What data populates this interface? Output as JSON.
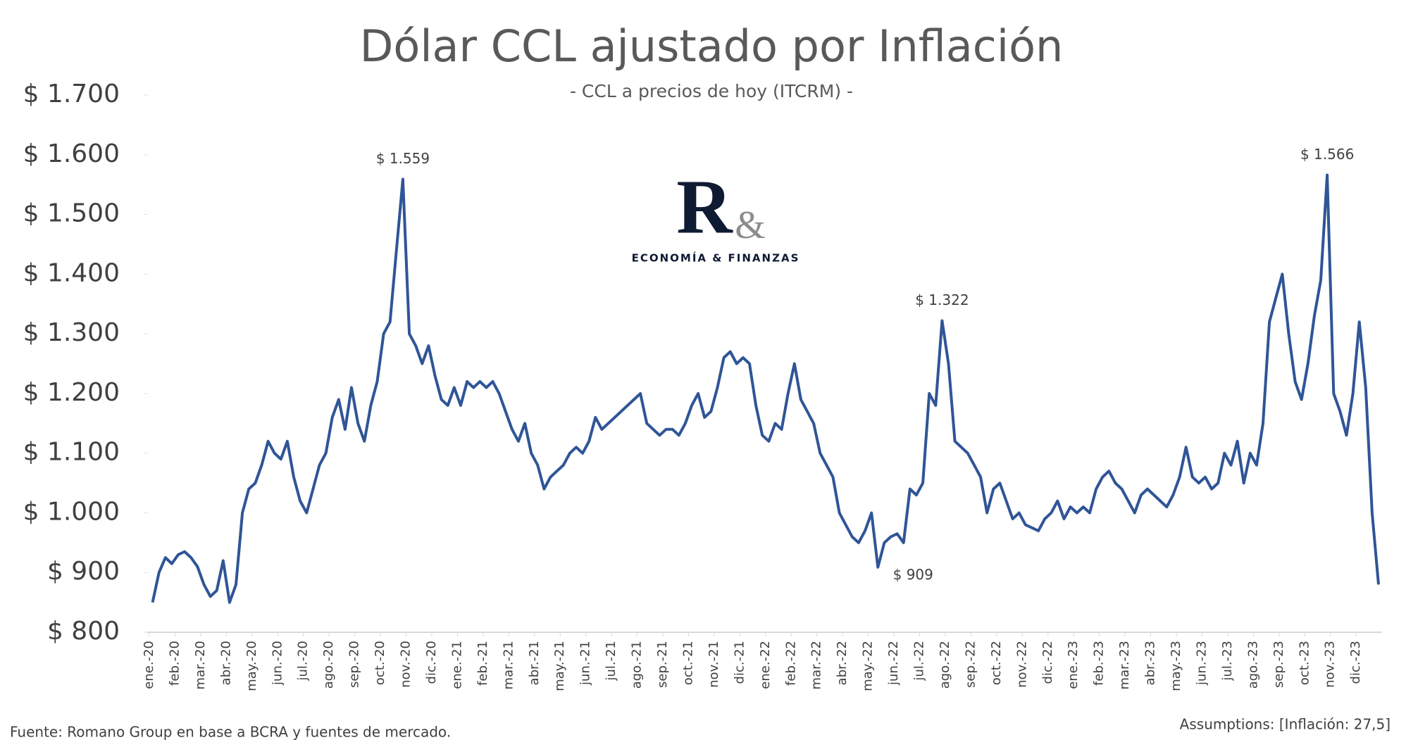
{
  "chart_data": {
    "type": "line",
    "title": "Dólar CCL ajustado por Inflación",
    "subtitle": "- CCL  a precios de hoy (ITCRM) -",
    "source": "Fuente: Romano Group en base a BCRA y fuentes de mercado.",
    "note": "Assumptions: [Inflación: 27,5]",
    "categories": [
      "ene.-20",
      "feb.-20",
      "mar.-20",
      "abr.-20",
      "may.-20",
      "jun.-20",
      "jul.-20",
      "ago.-20",
      "sep.-20",
      "oct.-20",
      "nov.-20",
      "dic.-20",
      "ene.-21",
      "feb.-21",
      "mar.-21",
      "abr.-21",
      "may.-21",
      "jun.-21",
      "jul.-21",
      "ago.-21",
      "sep.-21",
      "oct.-21",
      "nov.-21",
      "dic.-21",
      "ene.-22",
      "feb.-22",
      "mar.-22",
      "abr.-22",
      "may.-22",
      "jun.-22",
      "jul.-22",
      "ago.-22",
      "sep.-22",
      "oct.-22",
      "nov.-22",
      "dic.-22",
      "ene.-23",
      "feb.-23",
      "mar.-23",
      "abr.-23",
      "may.-23",
      "jun.-23",
      "jul.-23",
      "ago.-23",
      "sep.-23",
      "oct.-23",
      "nov.-23",
      "dic.-23"
    ],
    "series": [
      {
        "name": "CCL",
        "color": "#2f5597",
        "values": [
          [
            850,
            900,
            925,
            915
          ],
          [
            930,
            935,
            925,
            910
          ],
          [
            880,
            860,
            870,
            920
          ],
          [
            850,
            880,
            1000,
            1040
          ],
          [
            1050,
            1080,
            1120,
            1100
          ],
          [
            1090,
            1120,
            1060,
            1020
          ],
          [
            1000,
            1040,
            1080,
            1100
          ],
          [
            1160,
            1190,
            1140,
            1210
          ],
          [
            1150,
            1120,
            1180,
            1220
          ],
          [
            1300,
            1320,
            1440,
            1559
          ],
          [
            1300,
            1280,
            1250,
            1280
          ],
          [
            1230,
            1190,
            1180,
            1210
          ],
          [
            1180,
            1220,
            1210,
            1220
          ],
          [
            1210,
            1220,
            1200,
            1170
          ],
          [
            1140,
            1120,
            1150,
            1100
          ],
          [
            1080,
            1040,
            1060,
            1070
          ],
          [
            1080,
            1100,
            1110,
            1100
          ],
          [
            1120,
            1160,
            1140,
            1150
          ],
          [
            1160,
            1170,
            1180,
            1190
          ],
          [
            1200,
            1150,
            1140,
            1130
          ],
          [
            1140,
            1140,
            1130,
            1150
          ],
          [
            1180,
            1200,
            1160,
            1170
          ],
          [
            1210,
            1260,
            1270,
            1250
          ],
          [
            1260,
            1250,
            1180,
            1130
          ],
          [
            1120,
            1150,
            1140,
            1200
          ],
          [
            1250,
            1190,
            1170,
            1150
          ],
          [
            1100,
            1080,
            1060,
            1000
          ],
          [
            980,
            960,
            950,
            970
          ],
          [
            1000,
            909,
            950,
            960
          ],
          [
            965,
            950,
            1040,
            1030
          ],
          [
            1050,
            1200,
            1180,
            1322
          ],
          [
            1250,
            1120,
            1110,
            1100
          ],
          [
            1080,
            1060,
            1000,
            1040
          ],
          [
            1050,
            1020,
            990,
            1000
          ],
          [
            980,
            975,
            970,
            990
          ],
          [
            1000,
            1020,
            990,
            1010
          ],
          [
            1000,
            1010,
            1000,
            1040
          ],
          [
            1060,
            1070,
            1050,
            1040
          ],
          [
            1020,
            1000,
            1030,
            1040
          ],
          [
            1030,
            1020,
            1010,
            1030
          ],
          [
            1060,
            1110,
            1060,
            1050
          ],
          [
            1060,
            1040,
            1050,
            1100
          ],
          [
            1080,
            1120,
            1050,
            1100
          ],
          [
            1080,
            1150,
            1320,
            1360
          ],
          [
            1400,
            1300,
            1220,
            1190
          ],
          [
            1250,
            1330,
            1390,
            1566
          ],
          [
            1200,
            1170,
            1130,
            1200
          ],
          [
            1320,
            1210,
            1000,
            880
          ]
        ]
      }
    ],
    "annotations": [
      {
        "label": "$ 1.559",
        "value": 1559
      },
      {
        "label": "$ 1.322",
        "value": 1322
      },
      {
        "label": "$ 909",
        "value": 909
      },
      {
        "label": "$ 1.566",
        "value": 1566
      }
    ],
    "ylim": [
      800,
      1700
    ],
    "yticks": [
      {
        "value": 800,
        "label": "$ 800"
      },
      {
        "value": 900,
        "label": "$ 900"
      },
      {
        "value": 1000,
        "label": "$ 1.000"
      },
      {
        "value": 1100,
        "label": "$ 1.100"
      },
      {
        "value": 1200,
        "label": "$ 1.200"
      },
      {
        "value": 1300,
        "label": "$ 1.300"
      },
      {
        "value": 1400,
        "label": "$ 1.400"
      },
      {
        "value": 1500,
        "label": "$ 1.500"
      },
      {
        "value": 1600,
        "label": "$ 1.600"
      },
      {
        "value": 1700,
        "label": "$ 1.700"
      }
    ],
    "grid": false
  },
  "logo": {
    "mark": "R",
    "amp": "&",
    "text": "ECONOMÍA & FINANZAS"
  }
}
